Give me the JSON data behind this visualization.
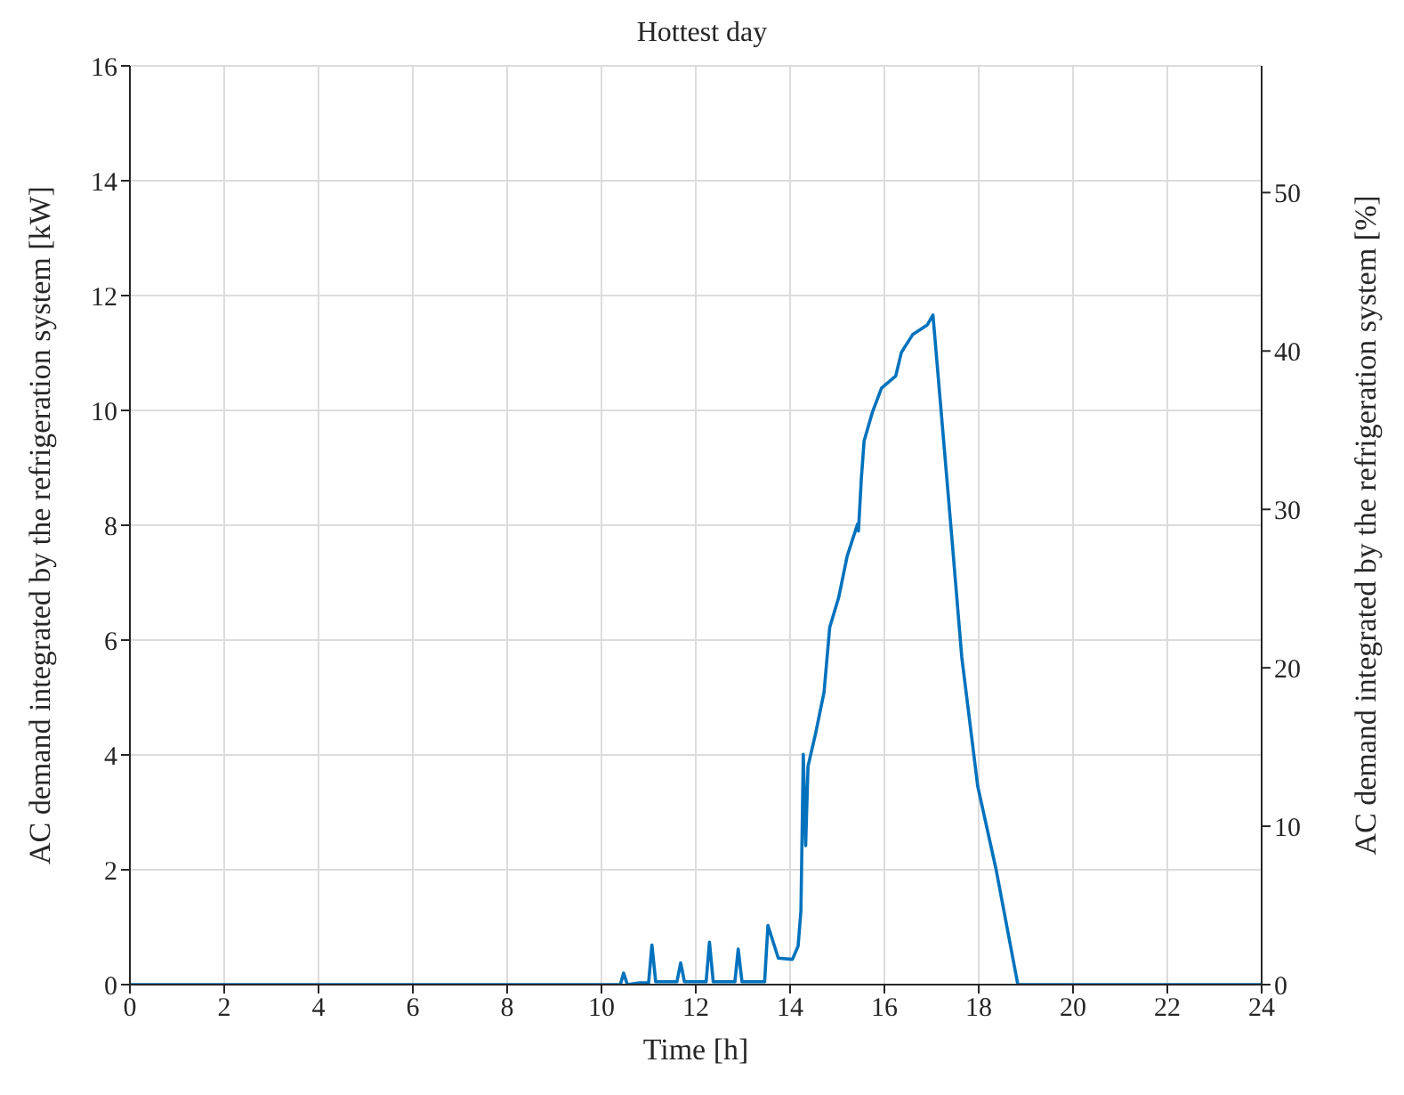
{
  "chart_data": {
    "type": "line",
    "title": "Hottest day",
    "xlabel": "Time [h]",
    "ylabel": "AC demand integrated by the refrigeration system [kW]",
    "y2label": "AC demand integrated by the refrigeration system [%]",
    "x": [
      0,
      10.4,
      10.47,
      10.55,
      10.8,
      11.0,
      11.07,
      11.15,
      11.6,
      11.68,
      11.76,
      12.22,
      12.29,
      12.37,
      12.83,
      12.9,
      12.98,
      13.46,
      13.53,
      13.75,
      14.05,
      14.17,
      14.23,
      14.28,
      14.33,
      14.38,
      14.54,
      14.72,
      14.84,
      15.03,
      15.21,
      15.43,
      15.45,
      15.51,
      15.57,
      15.75,
      15.94,
      16.24,
      16.36,
      16.6,
      16.91,
      17.03,
      17.4,
      17.64,
      17.98,
      18.37,
      18.83,
      24
    ],
    "series": [
      {
        "color": "#0072bd",
        "values": [
          0,
          0,
          0.2,
          0,
          0.03,
          0.03,
          0.69,
          0.05,
          0.05,
          0.38,
          0.05,
          0.05,
          0.74,
          0.05,
          0.05,
          0.62,
          0.05,
          0.05,
          1.03,
          0.46,
          0.44,
          0.67,
          1.29,
          4.01,
          2.42,
          3.8,
          4.37,
          5.09,
          6.22,
          6.74,
          7.46,
          8.02,
          7.9,
          8.8,
          9.47,
          9.98,
          10.39,
          10.6,
          11.01,
          11.32,
          11.49,
          11.66,
          8.08,
          5.71,
          3.45,
          2,
          0,
          0
        ]
      }
    ],
    "xlim": [
      0,
      24
    ],
    "xticks": [
      0,
      2,
      4,
      6,
      8,
      10,
      12,
      14,
      16,
      18,
      20,
      22,
      24
    ],
    "ylim": [
      0,
      16
    ],
    "yticks": [
      0,
      2,
      4,
      6,
      8,
      10,
      12,
      14,
      16
    ],
    "y2lim": [
      0,
      58
    ],
    "y2ticks": [
      0,
      10,
      20,
      30,
      40,
      50
    ],
    "grid": true,
    "legend": false,
    "marker": "none",
    "line_style": "solid"
  }
}
